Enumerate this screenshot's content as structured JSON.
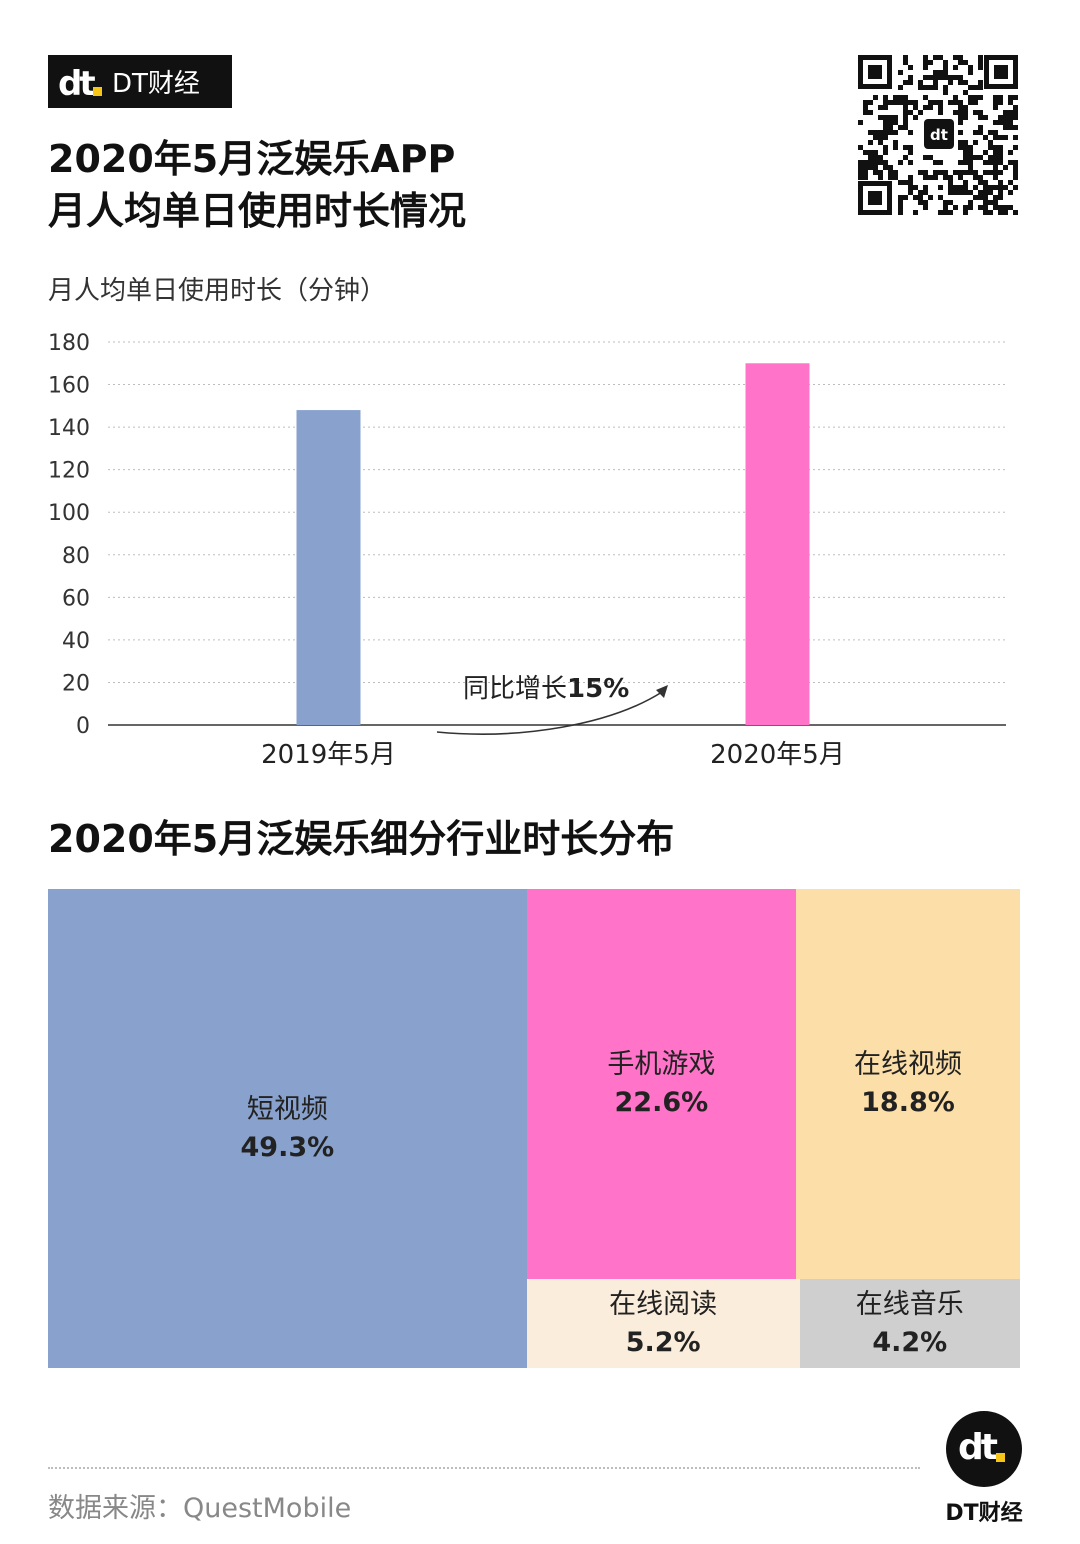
{
  "brand": {
    "badge_text": "DT财经",
    "footer_text": "DT财经"
  },
  "title_line1": "2020年5月泛娱乐APP",
  "title_line2": "月人均单日使用时长情况",
  "treemap_title": "2020年5月泛娱乐细分行业时长分布",
  "source": "数据来源：QuestMobile",
  "colors": {
    "blue": "#88a2cd",
    "pink": "#ff73c9",
    "peach": "#fcdfa8",
    "cream": "#fbeddb",
    "gray": "#cfcfcf"
  },
  "chart_data": [
    {
      "type": "bar",
      "ylabel": "月人均单日使用时长（分钟）",
      "categories": [
        "2019年5月",
        "2020年5月"
      ],
      "values": [
        148,
        170
      ],
      "ylim": [
        0,
        180
      ],
      "yticks": [
        0,
        20,
        40,
        60,
        80,
        100,
        120,
        140,
        160,
        180
      ],
      "grid": true,
      "annotation": {
        "prefix": "同比增长",
        "value": "15%"
      }
    },
    {
      "type": "treemap",
      "items": [
        {
          "name": "短视频",
          "value": 49.3,
          "label": "49.3%"
        },
        {
          "name": "手机游戏",
          "value": 22.6,
          "label": "22.6%"
        },
        {
          "name": "在线视频",
          "value": 18.8,
          "label": "18.8%"
        },
        {
          "name": "在线阅读",
          "value": 5.2,
          "label": "5.2%"
        },
        {
          "name": "在线音乐",
          "value": 4.2,
          "label": "4.2%"
        }
      ]
    }
  ]
}
